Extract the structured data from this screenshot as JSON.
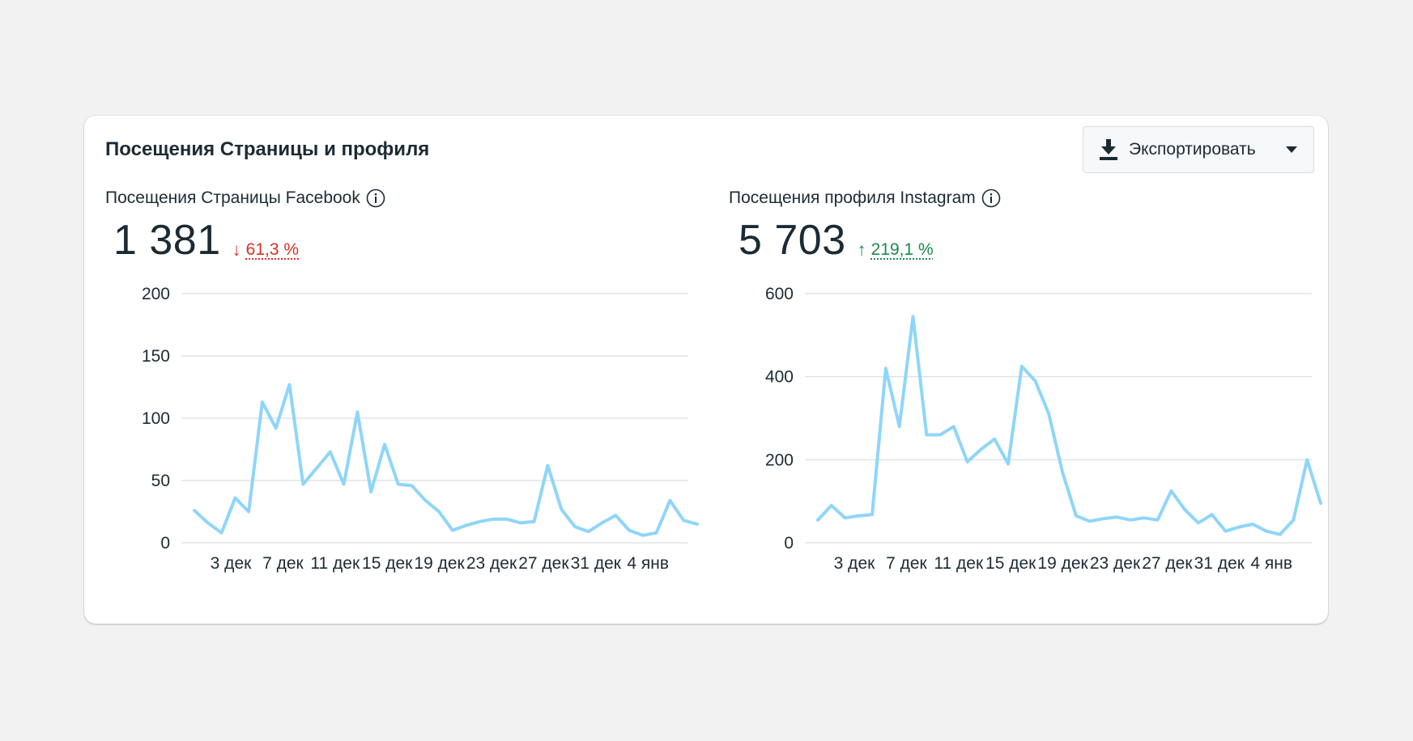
{
  "card": {
    "title": "Посещения Страницы и профиля",
    "export_label": "Экспортировать",
    "export_icon": "download-icon",
    "export_caret_icon": "caret-down-icon"
  },
  "panels": [
    {
      "title": "Посещения Страницы Facebook",
      "info_icon": "info-icon",
      "value": "1 381",
      "change_arrow": "↓",
      "change": "61,3 %",
      "trend": "down"
    },
    {
      "title": "Посещения профиля Instagram",
      "info_icon": "info-icon",
      "value": "5 703",
      "change_arrow": "↑",
      "change": "219,1 %",
      "trend": "up"
    }
  ],
  "colors": {
    "line": "#8fd5fa",
    "gridline": "#dadde1",
    "down": "#d93025",
    "up": "#1e8a4d"
  },
  "chart_data": [
    {
      "type": "line",
      "title": "Посещения Страницы Facebook",
      "x_tick_labels": [
        "3 дек",
        "7 дек",
        "11 дек",
        "15 дек",
        "19 дек",
        "23 дек",
        "27 дек",
        "31 дек",
        "4 янв"
      ],
      "y_ticks": [
        0,
        50,
        100,
        150,
        200
      ],
      "ylim": [
        0,
        200
      ],
      "grid": true,
      "series": [
        {
          "values": [
            26,
            16,
            8,
            36,
            25,
            113,
            92,
            127,
            47,
            60,
            73,
            47,
            105,
            41,
            79,
            47,
            46,
            34,
            25,
            10,
            14,
            17,
            19,
            19,
            16,
            17,
            62,
            27,
            13,
            9,
            16,
            22,
            10,
            6,
            8,
            34,
            18,
            15
          ]
        }
      ]
    },
    {
      "type": "line",
      "title": "Посещения профиля Instagram",
      "x_tick_labels": [
        "3 дек",
        "7 дек",
        "11 дек",
        "15 дек",
        "19 дек",
        "23 дек",
        "27 дек",
        "31 дек",
        "4 янв"
      ],
      "y_ticks": [
        0,
        200,
        400,
        600
      ],
      "ylim": [
        0,
        600
      ],
      "grid": true,
      "series": [
        {
          "values": [
            55,
            90,
            60,
            65,
            68,
            420,
            280,
            545,
            260,
            260,
            280,
            195,
            225,
            250,
            190,
            425,
            390,
            310,
            170,
            65,
            52,
            58,
            62,
            55,
            60,
            55,
            125,
            80,
            48,
            68,
            28,
            38,
            45,
            28,
            20,
            55,
            200,
            95
          ]
        }
      ]
    }
  ]
}
